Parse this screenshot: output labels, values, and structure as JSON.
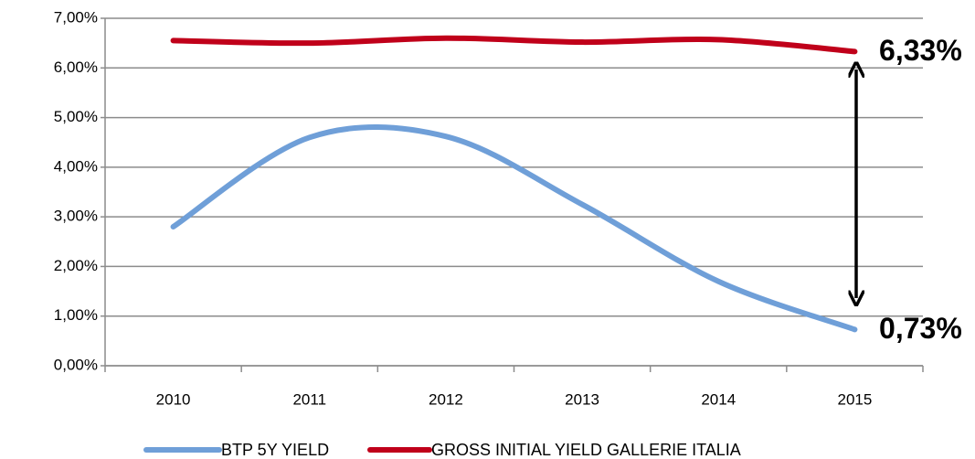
{
  "chart_data": {
    "type": "line",
    "categories": [
      "2010",
      "2011",
      "2012",
      "2013",
      "2014",
      "2015"
    ],
    "series": [
      {
        "name": "BTP 5Y YIELD",
        "color": "#6f9fd8",
        "values": [
          2.8,
          4.6,
          4.62,
          3.25,
          1.7,
          0.73
        ],
        "value_labels": [
          null,
          null,
          null,
          null,
          null,
          "0,73%"
        ]
      },
      {
        "name": "GROSS INITIAL YIELD GALLERIE ITALIA",
        "color": "#c0001a",
        "values": [
          6.55,
          6.5,
          6.6,
          6.52,
          6.57,
          6.33
        ],
        "value_labels": [
          null,
          null,
          null,
          null,
          null,
          "6,33%"
        ]
      }
    ],
    "ylim": [
      0,
      7
    ],
    "yticks": [
      {
        "value": 0,
        "label": "0,00%"
      },
      {
        "value": 1,
        "label": "1,00%"
      },
      {
        "value": 2,
        "label": "2,00%"
      },
      {
        "value": 3,
        "label": "3,00%"
      },
      {
        "value": 4,
        "label": "4,00%"
      },
      {
        "value": 5,
        "label": "5,00%"
      },
      {
        "value": 6,
        "label": "6,00%"
      },
      {
        "value": 7,
        "label": "7,00%"
      }
    ],
    "grid": true,
    "legend": "bottom"
  }
}
